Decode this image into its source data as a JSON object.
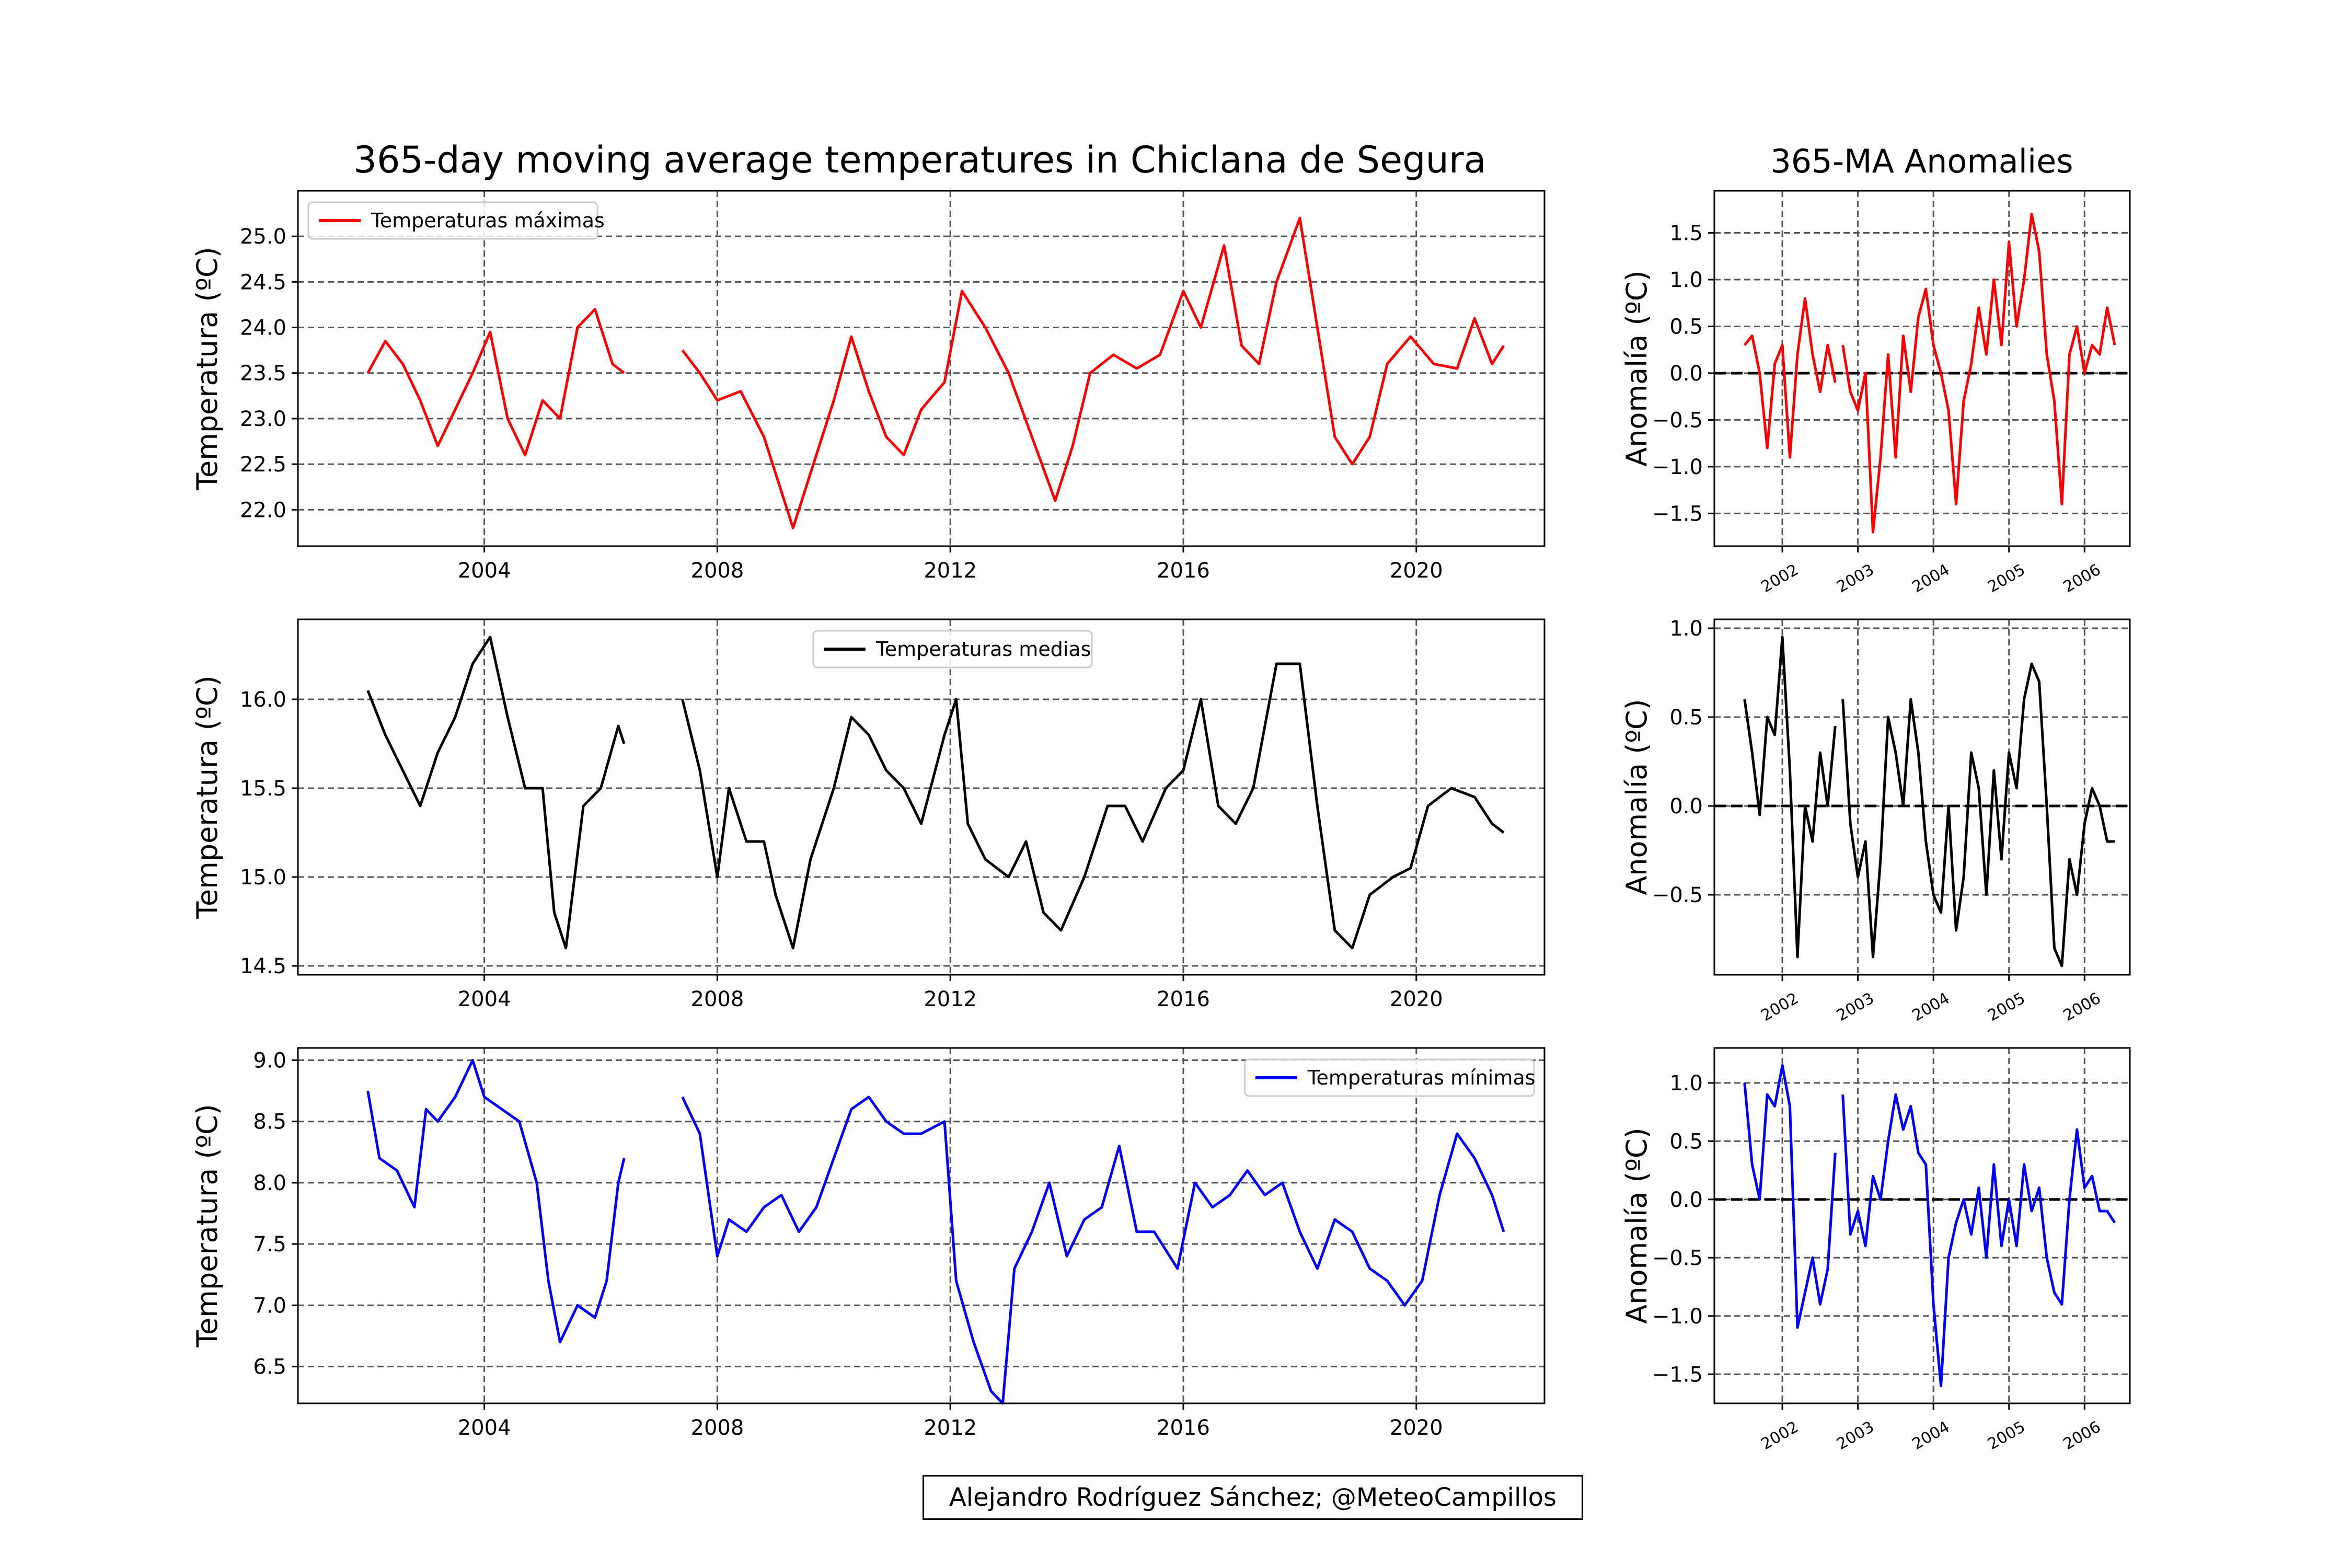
{
  "figure": {
    "title": "365-day moving average temperatures in Chiclana de Segura",
    "anomaly_title": "365-MA Anomalies",
    "credit": "Alejandro Rodríguez Sánchez; @MeteoCampillos"
  },
  "colors": {
    "max": "#ff0000",
    "mean": "#000000",
    "min": "#0000ff",
    "grid": "#555555"
  },
  "chart_data": [
    {
      "id": "tmax-ma",
      "type": "line",
      "series": [
        {
          "name": "Temperaturas máximas",
          "color": "#ff0000",
          "x": [
            2002.0,
            2002.3,
            2002.6,
            2002.9,
            2003.2,
            2003.5,
            2003.8,
            2004.1,
            2004.4,
            2004.7,
            2005.0,
            2005.3,
            2005.6,
            2005.9,
            2006.2,
            2006.4
          ],
          "y": [
            23.5,
            23.85,
            23.6,
            23.2,
            22.7,
            23.1,
            23.5,
            23.95,
            23.0,
            22.6,
            23.2,
            23.0,
            24.0,
            24.2,
            23.6,
            23.5
          ]
        },
        {
          "name": "",
          "color": "#ff0000",
          "x": [
            2007.4,
            2007.7,
            2008.0,
            2008.4,
            2008.8,
            2009.1,
            2009.3,
            2009.6,
            2010.0,
            2010.3,
            2010.6,
            2010.9,
            2011.2,
            2011.5,
            2011.9,
            2012.2,
            2012.6,
            2013.0,
            2013.4,
            2013.8,
            2014.1,
            2014.4,
            2014.8,
            2015.2,
            2015.6,
            2016.0,
            2016.3,
            2016.7,
            2017.0,
            2017.3,
            2017.6,
            2018.0,
            2018.3,
            2018.6,
            2018.9,
            2019.2,
            2019.5,
            2019.9,
            2020.3,
            2020.7,
            2021.0,
            2021.3,
            2021.5
          ],
          "y": [
            23.75,
            23.5,
            23.2,
            23.3,
            22.8,
            22.2,
            21.8,
            22.4,
            23.2,
            23.9,
            23.3,
            22.8,
            22.6,
            23.1,
            23.4,
            24.4,
            24.0,
            23.5,
            22.8,
            22.1,
            22.7,
            23.5,
            23.7,
            23.55,
            23.7,
            24.4,
            24.0,
            24.9,
            23.8,
            23.6,
            24.5,
            25.2,
            24.0,
            22.8,
            22.5,
            22.8,
            23.6,
            23.9,
            23.6,
            23.55,
            24.1,
            23.6,
            23.8
          ]
        }
      ],
      "ylim": [
        21.6,
        25.5
      ],
      "xlim": [
        2000.8,
        2022.2
      ],
      "yticks": [
        "22.0",
        "22.5",
        "23.0",
        "23.5",
        "24.0",
        "24.5",
        "25.0"
      ],
      "xticks": [
        "2004",
        "2008",
        "2012",
        "2016",
        "2020"
      ],
      "ylabel": "Temperatura (ºC)",
      "grid": true,
      "legend": "upper-left"
    },
    {
      "id": "tmean-ma",
      "type": "line",
      "series": [
        {
          "name": "Temperaturas medias",
          "color": "#000000",
          "x": [
            2002.0,
            2002.3,
            2002.6,
            2002.9,
            2003.2,
            2003.5,
            2003.8,
            2004.0,
            2004.1,
            2004.4,
            2004.7,
            2005.0,
            2005.2,
            2005.4,
            2005.7,
            2006.0,
            2006.3,
            2006.4
          ],
          "y": [
            16.05,
            15.8,
            15.6,
            15.4,
            15.7,
            15.9,
            16.2,
            16.3,
            16.35,
            15.9,
            15.5,
            15.5,
            14.8,
            14.6,
            15.4,
            15.5,
            15.85,
            15.75
          ]
        },
        {
          "name": "",
          "color": "#000000",
          "x": [
            2007.4,
            2007.7,
            2008.0,
            2008.2,
            2008.5,
            2008.8,
            2009.0,
            2009.3,
            2009.6,
            2010.0,
            2010.3,
            2010.6,
            2010.9,
            2011.2,
            2011.5,
            2011.9,
            2012.1,
            2012.3,
            2012.6,
            2013.0,
            2013.3,
            2013.6,
            2013.9,
            2014.3,
            2014.7,
            2015.0,
            2015.3,
            2015.7,
            2016.0,
            2016.3,
            2016.6,
            2016.9,
            2017.2,
            2017.6,
            2018.0,
            2018.3,
            2018.6,
            2018.9,
            2019.2,
            2019.6,
            2019.9,
            2020.2,
            2020.6,
            2021.0,
            2021.3,
            2021.5
          ],
          "y": [
            16.0,
            15.6,
            15.0,
            15.5,
            15.2,
            15.2,
            14.9,
            14.6,
            15.1,
            15.5,
            15.9,
            15.8,
            15.6,
            15.5,
            15.3,
            15.8,
            16.0,
            15.3,
            15.1,
            15.0,
            15.2,
            14.8,
            14.7,
            15.0,
            15.4,
            15.4,
            15.2,
            15.5,
            15.6,
            16.0,
            15.4,
            15.3,
            15.5,
            16.2,
            16.2,
            15.4,
            14.7,
            14.6,
            14.9,
            15.0,
            15.05,
            15.4,
            15.5,
            15.45,
            15.3,
            15.25
          ]
        }
      ],
      "ylim": [
        14.45,
        16.45
      ],
      "xlim": [
        2000.8,
        2022.2
      ],
      "yticks": [
        "14.5",
        "15.0",
        "15.5",
        "16.0"
      ],
      "xticks": [
        "2004",
        "2008",
        "2012",
        "2016",
        "2020"
      ],
      "ylabel": "Temperatura (ºC)",
      "grid": true,
      "legend": "upper-center"
    },
    {
      "id": "tmin-ma",
      "type": "line",
      "series": [
        {
          "name": "Temperaturas mínimas",
          "color": "#0000ff",
          "x": [
            2002.0,
            2002.2,
            2002.5,
            2002.8,
            2003.0,
            2003.2,
            2003.5,
            2003.8,
            2004.0,
            2004.3,
            2004.6,
            2004.9,
            2005.1,
            2005.3,
            2005.6,
            2005.9,
            2006.1,
            2006.3,
            2006.4
          ],
          "y": [
            8.75,
            8.2,
            8.1,
            7.8,
            8.6,
            8.5,
            8.7,
            9.0,
            8.7,
            8.6,
            8.5,
            8.0,
            7.2,
            6.7,
            7.0,
            6.9,
            7.2,
            8.0,
            8.2
          ]
        },
        {
          "name": "",
          "color": "#0000ff",
          "x": [
            2007.4,
            2007.7,
            2008.0,
            2008.2,
            2008.5,
            2008.8,
            2009.1,
            2009.4,
            2009.7,
            2010.0,
            2010.3,
            2010.6,
            2010.9,
            2011.2,
            2011.5,
            2011.9,
            2012.1,
            2012.4,
            2012.7,
            2012.9,
            2013.1,
            2013.4,
            2013.7,
            2014.0,
            2014.3,
            2014.6,
            2014.9,
            2015.2,
            2015.5,
            2015.9,
            2016.2,
            2016.5,
            2016.8,
            2017.1,
            2017.4,
            2017.7,
            2018.0,
            2018.3,
            2018.6,
            2018.9,
            2019.2,
            2019.5,
            2019.8,
            2020.1,
            2020.4,
            2020.7,
            2021.0,
            2021.3,
            2021.5
          ],
          "y": [
            8.7,
            8.4,
            7.4,
            7.7,
            7.6,
            7.8,
            7.9,
            7.6,
            7.8,
            8.2,
            8.6,
            8.7,
            8.5,
            8.4,
            8.4,
            8.5,
            7.2,
            6.7,
            6.3,
            6.2,
            7.3,
            7.6,
            8.0,
            7.4,
            7.7,
            7.8,
            8.3,
            7.6,
            7.6,
            7.3,
            8.0,
            7.8,
            7.9,
            8.1,
            7.9,
            8.0,
            7.6,
            7.3,
            7.7,
            7.6,
            7.3,
            7.2,
            7.0,
            7.2,
            7.9,
            8.4,
            8.2,
            7.9,
            7.6
          ]
        }
      ],
      "ylim": [
        6.2,
        9.1
      ],
      "xlim": [
        2000.8,
        2022.2
      ],
      "yticks": [
        "6.5",
        "7.0",
        "7.5",
        "8.0",
        "8.5",
        "9.0"
      ],
      "xticks": [
        "2004",
        "2008",
        "2012",
        "2016",
        "2020"
      ],
      "ylabel": "Temperatura (ºC)",
      "grid": true,
      "legend": "upper-right"
    },
    {
      "id": "tmax-anom",
      "type": "line",
      "series": [
        {
          "name": "",
          "color": "#ff0000",
          "x": [
            2001.5,
            2001.6,
            2001.7,
            2001.8,
            2001.9,
            2002.0,
            2002.1,
            2002.2,
            2002.3,
            2002.4,
            2002.5,
            2002.6,
            2002.7
          ],
          "y": [
            0.3,
            0.4,
            0.0,
            -0.8,
            0.1,
            0.3,
            -0.9,
            0.2,
            0.8,
            0.2,
            -0.2,
            0.3,
            -0.1
          ]
        },
        {
          "name": "",
          "color": "#ff0000",
          "x": [
            2002.8,
            2002.9,
            2003.0,
            2003.1,
            2003.2,
            2003.3,
            2003.4,
            2003.5,
            2003.6,
            2003.7,
            2003.8,
            2003.9,
            2004.0,
            2004.1,
            2004.2,
            2004.3,
            2004.4,
            2004.5,
            2004.6,
            2004.7,
            2004.8,
            2004.9,
            2005.0,
            2005.1,
            2005.2,
            2005.3,
            2005.4,
            2005.5,
            2005.6,
            2005.7,
            2005.8,
            2005.9,
            2006.0,
            2006.1,
            2006.2,
            2006.3,
            2006.4
          ],
          "y": [
            0.3,
            -0.2,
            -0.4,
            0.0,
            -1.7,
            -0.9,
            0.2,
            -0.9,
            0.4,
            -0.2,
            0.6,
            0.9,
            0.3,
            0.0,
            -0.4,
            -1.4,
            -0.3,
            0.1,
            0.7,
            0.2,
            1.0,
            0.3,
            1.4,
            0.5,
            1.0,
            1.7,
            1.3,
            0.2,
            -0.3,
            -1.4,
            0.2,
            0.5,
            0.0,
            0.3,
            0.2,
            0.7,
            0.3
          ]
        }
      ],
      "ylim": [
        -1.85,
        1.95
      ],
      "xlim": [
        2001.1,
        2006.6
      ],
      "yticks": [
        "−1.5",
        "−1.0",
        "−0.5",
        "0.0",
        "0.5",
        "1.0",
        "1.5"
      ],
      "xticks": [
        "2002",
        "2003",
        "2004",
        "2005",
        "2006"
      ],
      "ylabel": "Anomalía (ºC)",
      "grid": true,
      "zero_line": true
    },
    {
      "id": "tmean-anom",
      "type": "line",
      "series": [
        {
          "name": "",
          "color": "#000000",
          "x": [
            2001.5,
            2001.6,
            2001.7,
            2001.8,
            2001.9,
            2002.0,
            2002.1,
            2002.2,
            2002.3,
            2002.4,
            2002.5,
            2002.6,
            2002.7
          ],
          "y": [
            0.6,
            0.3,
            -0.05,
            0.5,
            0.4,
            0.95,
            0.2,
            -0.85,
            0.0,
            -0.2,
            0.3,
            0.0,
            0.45
          ]
        },
        {
          "name": "",
          "color": "#000000",
          "x": [
            2002.8,
            2002.9,
            2003.0,
            2003.1,
            2003.2,
            2003.3,
            2003.4,
            2003.5,
            2003.6,
            2003.7,
            2003.8,
            2003.9,
            2004.0,
            2004.1,
            2004.2,
            2004.3,
            2004.4,
            2004.5,
            2004.6,
            2004.7,
            2004.8,
            2004.9,
            2005.0,
            2005.1,
            2005.2,
            2005.3,
            2005.4,
            2005.5,
            2005.6,
            2005.7,
            2005.8,
            2005.9,
            2006.0,
            2006.1,
            2006.2,
            2006.3,
            2006.4
          ],
          "y": [
            0.6,
            -0.1,
            -0.4,
            -0.2,
            -0.85,
            -0.3,
            0.5,
            0.3,
            0.0,
            0.6,
            0.3,
            -0.2,
            -0.5,
            -0.6,
            0.0,
            -0.7,
            -0.4,
            0.3,
            0.1,
            -0.5,
            0.2,
            -0.3,
            0.3,
            0.1,
            0.6,
            0.8,
            0.7,
            0.0,
            -0.8,
            -0.9,
            -0.3,
            -0.5,
            -0.1,
            0.1,
            0.0,
            -0.2,
            -0.2
          ]
        }
      ],
      "ylim": [
        -0.95,
        1.05
      ],
      "xlim": [
        2001.1,
        2006.6
      ],
      "yticks": [
        "−0.5",
        "0.0",
        "0.5",
        "1.0"
      ],
      "xticks": [
        "2002",
        "2003",
        "2004",
        "2005",
        "2006"
      ],
      "ylabel": "Anomalía (ºC)",
      "grid": true,
      "zero_line": true
    },
    {
      "id": "tmin-anom",
      "type": "line",
      "series": [
        {
          "name": "",
          "color": "#0000ff",
          "x": [
            2001.5,
            2001.6,
            2001.7,
            2001.8,
            2001.9,
            2002.0,
            2002.1,
            2002.2,
            2002.3,
            2002.4,
            2002.5,
            2002.6,
            2002.7
          ],
          "y": [
            1.0,
            0.3,
            0.0,
            0.9,
            0.8,
            1.15,
            0.8,
            -1.1,
            -0.8,
            -0.5,
            -0.9,
            -0.6,
            0.4
          ]
        },
        {
          "name": "",
          "color": "#0000ff",
          "x": [
            2002.8,
            2002.9,
            2003.0,
            2003.1,
            2003.2,
            2003.3,
            2003.4,
            2003.5,
            2003.6,
            2003.7,
            2003.8,
            2003.9,
            2004.0,
            2004.1,
            2004.2,
            2004.3,
            2004.4,
            2004.5,
            2004.6,
            2004.7,
            2004.8,
            2004.9,
            2005.0,
            2005.1,
            2005.2,
            2005.3,
            2005.4,
            2005.5,
            2005.6,
            2005.7,
            2005.8,
            2005.9,
            2006.0,
            2006.1,
            2006.2,
            2006.3,
            2006.4
          ],
          "y": [
            0.9,
            -0.3,
            -0.1,
            -0.4,
            0.2,
            0.0,
            0.5,
            0.9,
            0.6,
            0.8,
            0.4,
            0.3,
            -0.9,
            -1.6,
            -0.5,
            -0.2,
            0.0,
            -0.3,
            0.1,
            -0.5,
            0.3,
            -0.4,
            0.0,
            -0.4,
            0.3,
            -0.1,
            0.1,
            -0.5,
            -0.8,
            -0.9,
            0.0,
            0.6,
            0.1,
            0.2,
            -0.1,
            -0.1,
            -0.2
          ]
        }
      ],
      "ylim": [
        -1.75,
        1.3
      ],
      "xlim": [
        2001.1,
        2006.6
      ],
      "yticks": [
        "−1.5",
        "−1.0",
        "−0.5",
        "0.0",
        "0.5",
        "1.0"
      ],
      "xticks": [
        "2002",
        "2003",
        "2004",
        "2005",
        "2006"
      ],
      "ylabel": "Anomalía (ºC)",
      "grid": true,
      "zero_line": true
    }
  ]
}
